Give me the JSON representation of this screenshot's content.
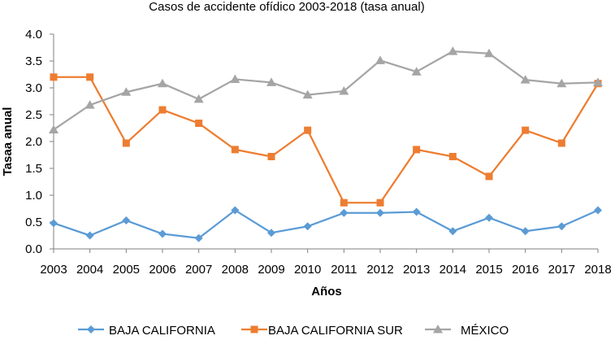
{
  "chart_data": {
    "type": "line",
    "title": "Casos de accidente ofídico 2003-2018 (tasa anual)",
    "xlabel": "Años",
    "ylabel": "Tasaa anual",
    "ylim": [
      0,
      4
    ],
    "yticks": [
      "0.0",
      "0.5",
      "1.0",
      "1.5",
      "2.0",
      "2.5",
      "3.0",
      "3.5",
      "4.0"
    ],
    "yticks_values": [
      0,
      0.5,
      1.0,
      1.5,
      2.0,
      2.5,
      3.0,
      3.5,
      4.0
    ],
    "categories": [
      "2003",
      "2004",
      "2005",
      "2006",
      "2007",
      "2008",
      "2009",
      "2010",
      "2011",
      "2012",
      "2013",
      "2014",
      "2015",
      "2016",
      "2017",
      "2018"
    ],
    "grid": false,
    "legend_position": "bottom",
    "series": [
      {
        "name": "BAJA CALIFORNIA",
        "color": "#5b9bd5",
        "marker": "diamond",
        "values": [
          0.48,
          0.25,
          0.53,
          0.28,
          0.2,
          0.72,
          0.3,
          0.42,
          0.67,
          0.67,
          0.69,
          0.33,
          0.58,
          0.33,
          0.42,
          0.72
        ]
      },
      {
        "name": "BAJA CALIFORNIA SUR",
        "color": "#ed7d31",
        "marker": "square",
        "values": [
          3.2,
          3.2,
          1.97,
          2.59,
          2.34,
          1.85,
          1.72,
          2.21,
          0.86,
          0.86,
          1.85,
          1.72,
          1.35,
          2.21,
          1.97,
          3.08
        ]
      },
      {
        "name": "MÉXICO",
        "color": "#a5a5a5",
        "marker": "triangle",
        "values": [
          2.22,
          2.68,
          2.92,
          3.08,
          2.79,
          3.16,
          3.1,
          2.87,
          2.94,
          3.51,
          3.3,
          3.68,
          3.64,
          3.15,
          3.08,
          3.1
        ]
      }
    ]
  }
}
